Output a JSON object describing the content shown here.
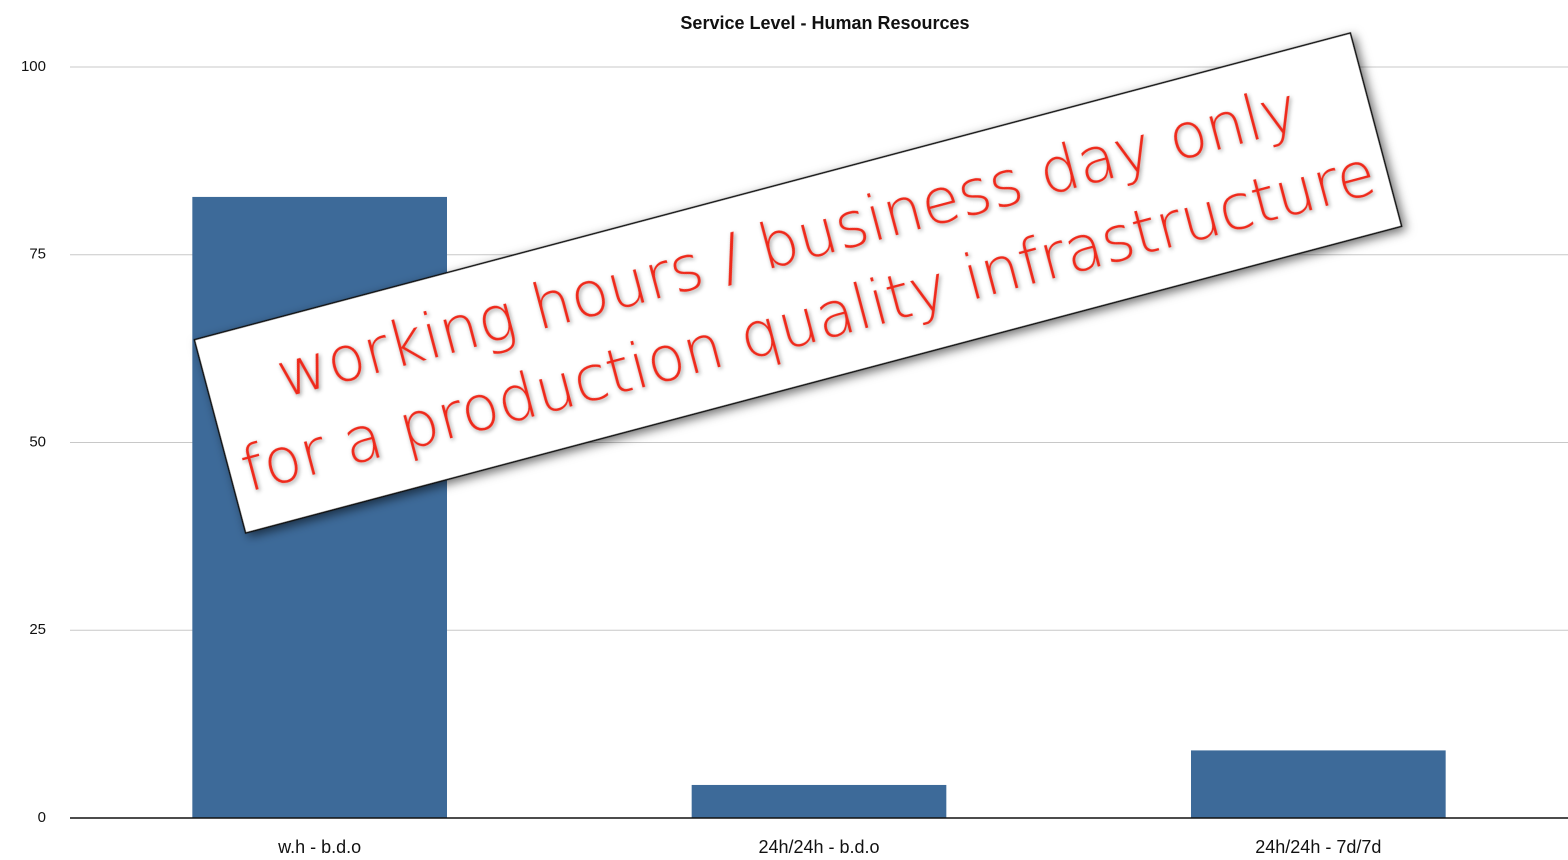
{
  "chart_data": {
    "type": "bar",
    "title": "Service Level - Human Resources",
    "categories": [
      "w.h - b.d.o",
      "24h/24h - b.d.o",
      "24h/24h - 7d/7d"
    ],
    "values": [
      82.7,
      4.4,
      9.0
    ],
    "color": "#3d6a99",
    "ylim": [
      0,
      100
    ],
    "yticks": [
      0,
      25,
      50,
      75,
      100
    ],
    "grid": true,
    "annotation": [
      "working hours / business day only",
      "for a production quality infrastructure"
    ]
  }
}
